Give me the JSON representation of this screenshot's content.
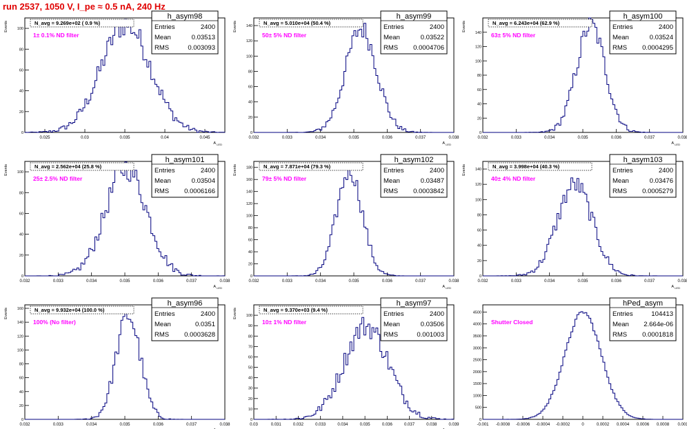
{
  "title": "run 2537,  1050 V, I_pe ≈ 0.5 nA, 240 Hz",
  "colors": {
    "hist": "#00007f",
    "annotation": "#ff00ff",
    "title": "#e00000"
  },
  "chart_data": [
    {
      "type": "histogram",
      "name": "h_asym98",
      "filter": "1± 0.1% ND filter",
      "n_avg": "N_avg = 9.269e+02 ( 0.9 %)",
      "stats": {
        "Entries": "2400",
        "Mean": "0.03513",
        "RMS": "0.003093"
      },
      "ylabel": "Events",
      "xlabel": "A_LED",
      "xlim": [
        0.0225,
        0.0475
      ],
      "ylim": [
        0,
        110
      ],
      "xticks": [
        "0.025",
        "0.03",
        "0.035",
        "0.04",
        "0.045"
      ],
      "yticks": [
        0,
        20,
        40,
        60,
        80,
        100
      ],
      "gauss": {
        "mean": 0.03513,
        "rms": 0.003093,
        "peak": 104
      }
    },
    {
      "type": "histogram",
      "name": "h_asym99",
      "filter": "50± 5% ND filter",
      "n_avg": "N_avg = 5.010e+04 (50.4 %)",
      "stats": {
        "Entries": "2400",
        "Mean": "0.03522",
        "RMS": "0.0004706"
      },
      "ylabel": "Events",
      "xlabel": "A_LED",
      "xlim": [
        0.032,
        0.038
      ],
      "ylim": [
        0,
        150
      ],
      "xticks": [
        "0.032",
        "0.033",
        "0.034",
        "0.035",
        "0.036",
        "0.037",
        "0.038"
      ],
      "yticks": [
        0,
        20,
        40,
        60,
        80,
        100,
        120,
        140
      ],
      "gauss": {
        "mean": 0.03522,
        "rms": 0.0004706,
        "peak": 136
      }
    },
    {
      "type": "histogram",
      "name": "h_asym100",
      "filter": "63± 5% ND filter",
      "n_avg": "N_avg = 6.243e+04 (62.9 %)",
      "stats": {
        "Entries": "2400",
        "Mean": "0.03524",
        "RMS": "0.0004295"
      },
      "ylabel": "Events",
      "xlabel": "A_LED",
      "xlim": [
        0.032,
        0.038
      ],
      "ylim": [
        0,
        160
      ],
      "xticks": [
        "0.032",
        "0.033",
        "0.034",
        "0.035",
        "0.036",
        "0.037",
        "0.038"
      ],
      "yticks": [
        0,
        20,
        40,
        60,
        80,
        100,
        120,
        140
      ],
      "gauss": {
        "mean": 0.03524,
        "rms": 0.0004295,
        "peak": 150
      }
    },
    {
      "type": "histogram",
      "name": "h_asym101",
      "filter": "25± 2.5% ND filter",
      "n_avg": "N_avg = 2.562e+04 (25.8 %)",
      "stats": {
        "Entries": "2400",
        "Mean": "0.03504",
        "RMS": "0.0006166"
      },
      "ylabel": "Events",
      "xlabel": "A_LED",
      "xlim": [
        0.032,
        0.038
      ],
      "ylim": [
        0,
        110
      ],
      "xticks": [
        "0.032",
        "0.033",
        "0.034",
        "0.035",
        "0.036",
        "0.037",
        "0.038"
      ],
      "yticks": [
        0,
        20,
        40,
        60,
        80,
        100
      ],
      "gauss": {
        "mean": 0.03504,
        "rms": 0.0006166,
        "peak": 104
      }
    },
    {
      "type": "histogram",
      "name": "h_asym102",
      "filter": "79± 5% ND filter",
      "n_avg": "N_avg = 7.871e+04 (79.3 %)",
      "stats": {
        "Entries": "2400",
        "Mean": "0.03487",
        "RMS": "0.0003842"
      },
      "ylabel": "Events",
      "xlabel": "A_LED",
      "xlim": [
        0.032,
        0.038
      ],
      "ylim": [
        0,
        190
      ],
      "xticks": [
        "0.032",
        "0.033",
        "0.034",
        "0.035",
        "0.036",
        "0.037",
        "0.038"
      ],
      "yticks": [
        0,
        20,
        40,
        60,
        80,
        100,
        120,
        140,
        160,
        180
      ],
      "gauss": {
        "mean": 0.03487,
        "rms": 0.0003842,
        "peak": 175
      }
    },
    {
      "type": "histogram",
      "name": "h_asym103",
      "filter": "40± 4% ND filter",
      "n_avg": "N_avg = 3.998e+04 (40.3 %)",
      "stats": {
        "Entries": "2400",
        "Mean": "0.03476",
        "RMS": "0.0005279"
      },
      "ylabel": "Events",
      "xlabel": "A_LED",
      "xlim": [
        0.032,
        0.038
      ],
      "ylim": [
        0,
        150
      ],
      "xticks": [
        "0.032",
        "0.033",
        "0.034",
        "0.035",
        "0.036",
        "0.037",
        "0.038"
      ],
      "yticks": [
        0,
        20,
        40,
        60,
        80,
        100,
        120,
        140
      ],
      "gauss": {
        "mean": 0.03476,
        "rms": 0.0005279,
        "peak": 120
      }
    },
    {
      "type": "histogram",
      "name": "h_asym96",
      "filter": "100% (No filter)",
      "n_avg": "N_avg = 9.932e+04 (100.0 %)",
      "stats": {
        "Entries": "2400",
        "Mean": "0.0351",
        "RMS": "0.0003628"
      },
      "ylabel": "Events",
      "xlabel": "A_LED",
      "xlim": [
        0.032,
        0.038
      ],
      "ylim": [
        0,
        165
      ],
      "xticks": [
        "0.032",
        "0.033",
        "0.034",
        "0.035",
        "0.036",
        "0.037",
        "0.038"
      ],
      "yticks": [
        0,
        20,
        40,
        60,
        80,
        100,
        120,
        140,
        160
      ],
      "gauss": {
        "mean": 0.0351,
        "rms": 0.0003628,
        "peak": 150
      }
    },
    {
      "type": "histogram",
      "name": "h_asym97",
      "filter": "10± 1% ND filter",
      "n_avg": "N_avg = 9.370e+03 (9.4 %)",
      "stats": {
        "Entries": "2400",
        "Mean": "0.03506",
        "RMS": "0.001003"
      },
      "ylabel": "Events",
      "xlabel": "A_LED",
      "xlim": [
        0.03,
        0.039
      ],
      "ylim": [
        0,
        110
      ],
      "xticks": [
        "0.03",
        "0.031",
        "0.032",
        "0.033",
        "0.034",
        "0.035",
        "0.036",
        "0.037",
        "0.038",
        "0.039"
      ],
      "yticks": [
        0,
        10,
        20,
        30,
        40,
        50,
        60,
        70,
        80,
        90,
        100
      ],
      "gauss": {
        "mean": 0.03506,
        "rms": 0.001003,
        "peak": 90
      }
    },
    {
      "type": "histogram",
      "name": "hPed_asym",
      "filter": "Shutter Closed",
      "n_avg": "",
      "stats": {
        "Entries": "104413",
        "Mean": "2.664e-06",
        "RMS": "0.0001818"
      },
      "ylabel": "",
      "xlabel": "",
      "xlim": [
        -0.001,
        0.001
      ],
      "ylim": [
        0,
        4800
      ],
      "xticks": [
        "-0.001",
        "-0.0008",
        "-0.0006",
        "-0.0004",
        "-0.0002",
        "0",
        "0.0002",
        "0.0004",
        "0.0006",
        "0.0008",
        "0.001"
      ],
      "yticks": [
        0,
        500,
        1000,
        1500,
        2000,
        2500,
        3000,
        3500,
        4000,
        4500
      ],
      "gauss": {
        "mean": 2.664e-06,
        "rms": 0.0001818,
        "peak": 4500
      }
    }
  ]
}
